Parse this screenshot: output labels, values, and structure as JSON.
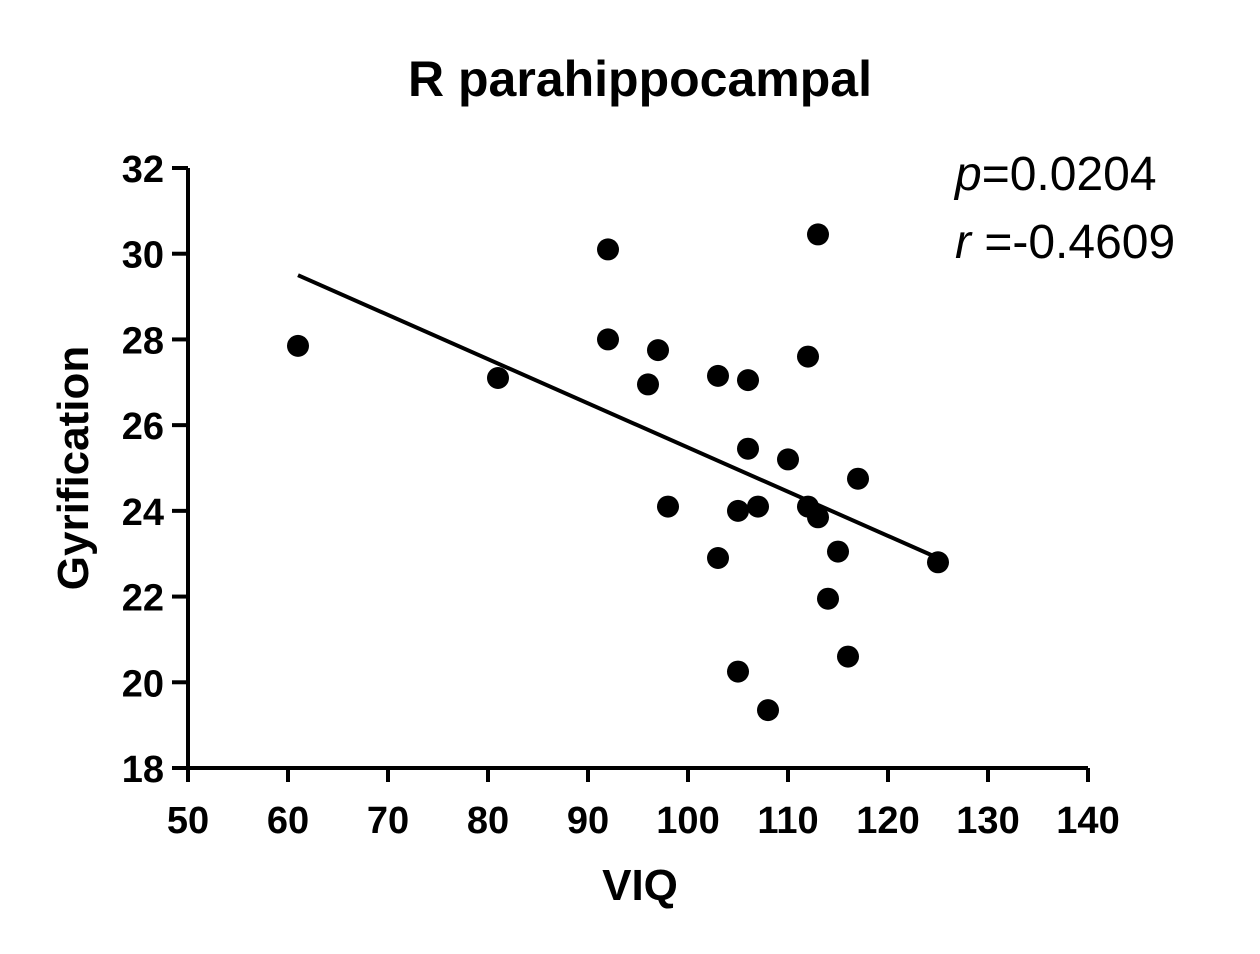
{
  "chart_data": {
    "type": "scatter",
    "title": "R parahippocampal",
    "xlabel": "VIQ",
    "ylabel": "Gyrification",
    "xlim": [
      50,
      140
    ],
    "ylim": [
      18,
      32
    ],
    "xticks": [
      "50",
      "60",
      "70",
      "80",
      "90",
      "100",
      "110",
      "120",
      "130",
      "140"
    ],
    "yticks": [
      "18",
      "20",
      "22",
      "24",
      "26",
      "28",
      "30",
      "32"
    ],
    "points": [
      {
        "x": 61,
        "y": 27.85
      },
      {
        "x": 81,
        "y": 27.1
      },
      {
        "x": 92,
        "y": 30.1
      },
      {
        "x": 92,
        "y": 28.0
      },
      {
        "x": 96,
        "y": 26.95
      },
      {
        "x": 97,
        "y": 27.75
      },
      {
        "x": 98,
        "y": 24.1
      },
      {
        "x": 103,
        "y": 27.15
      },
      {
        "x": 103,
        "y": 22.9
      },
      {
        "x": 105,
        "y": 24.0
      },
      {
        "x": 105,
        "y": 20.25
      },
      {
        "x": 106,
        "y": 27.05
      },
      {
        "x": 106,
        "y": 25.45
      },
      {
        "x": 107,
        "y": 24.1
      },
      {
        "x": 108,
        "y": 19.35
      },
      {
        "x": 110,
        "y": 25.2
      },
      {
        "x": 112,
        "y": 27.6
      },
      {
        "x": 112,
        "y": 24.1
      },
      {
        "x": 113,
        "y": 30.45
      },
      {
        "x": 113,
        "y": 23.85
      },
      {
        "x": 114,
        "y": 21.95
      },
      {
        "x": 115,
        "y": 23.05
      },
      {
        "x": 116,
        "y": 20.6
      },
      {
        "x": 117,
        "y": 24.75
      },
      {
        "x": 125,
        "y": 22.8
      }
    ],
    "regression_line": {
      "x": [
        61,
        125
      ],
      "y": [
        29.5,
        22.9
      ]
    },
    "annotations": {
      "p_symbol": "p",
      "p_value": "=0.0204",
      "r_symbol": "r",
      "r_value": " =-0.4609"
    }
  }
}
